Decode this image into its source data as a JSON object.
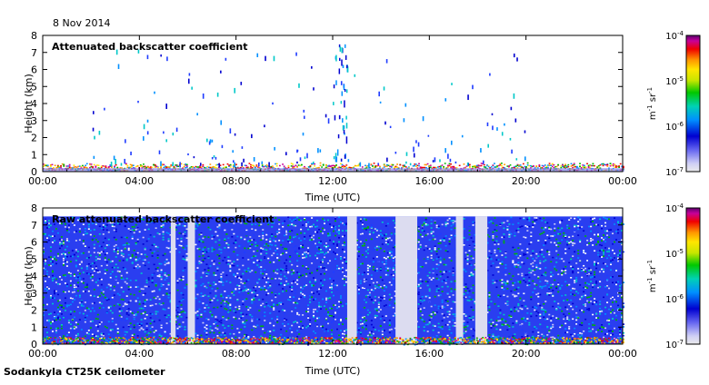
{
  "date": "8 Nov 2014",
  "footer": "Sodankyla CT25K ceilometer",
  "colorbar": {
    "top_mantissa": "10",
    "top_exp": "-4",
    "labels": [
      {
        "mantissa": "10",
        "exp": "-4"
      },
      {
        "mantissa": "10",
        "exp": "-5"
      },
      {
        "mantissa": "10",
        "exp": "-6"
      },
      {
        "mantissa": "10",
        "exp": "-7"
      }
    ],
    "unit": "m-1 sr-1",
    "scale": "log",
    "min": 1e-07,
    "max": 0.0001
  },
  "chart_data": [
    {
      "type": "heatmap",
      "title": "Attenuated backscatter coefficient",
      "xlabel": "Time (UTC)",
      "ylabel": "Height (km)",
      "xlim": [
        0,
        24
      ],
      "ylim": [
        0,
        8
      ],
      "x_ticks": [
        "00:00",
        "04:00",
        "08:00",
        "12:00",
        "16:00",
        "20:00",
        "00:00"
      ],
      "y_ticks": [
        "0",
        "1",
        "2",
        "3",
        "4",
        "5",
        "6",
        "7",
        "8"
      ],
      "colorbar_range": [
        1e-07,
        0.0001
      ],
      "features": [
        {
          "description": "boundary layer aerosol",
          "height_km": [
            0,
            0.4
          ],
          "time_h": [
            0,
            24
          ]
        },
        {
          "description": "scattered echoes",
          "height_km": [
            0.5,
            7.5
          ],
          "time_h": [
            2,
            20
          ]
        }
      ]
    },
    {
      "type": "heatmap",
      "title": "Raw attenuated backscatter coefficient",
      "xlabel": "Time (UTC)",
      "ylabel": "Height (km)",
      "xlim": [
        0,
        24
      ],
      "ylim": [
        0,
        8
      ],
      "x_ticks": [
        "00:00",
        "04:00",
        "08:00",
        "12:00",
        "16:00",
        "20:00",
        "00:00"
      ],
      "y_ticks": [
        "0",
        "1",
        "2",
        "3",
        "4",
        "5",
        "6",
        "7",
        "8"
      ],
      "colorbar_range": [
        1e-07,
        0.0001
      ],
      "features": [
        {
          "description": "noise field",
          "height_km": [
            0,
            7.5
          ],
          "time_h": [
            0,
            24
          ]
        },
        {
          "description": "low-signal gaps",
          "time_h": [
            [
              5.3,
              5.5
            ],
            [
              6.0,
              6.3
            ],
            [
              12.6,
              13.0
            ],
            [
              14.6,
              15.5
            ],
            [
              17.1,
              17.4
            ],
            [
              17.9,
              18.4
            ]
          ]
        }
      ]
    }
  ]
}
